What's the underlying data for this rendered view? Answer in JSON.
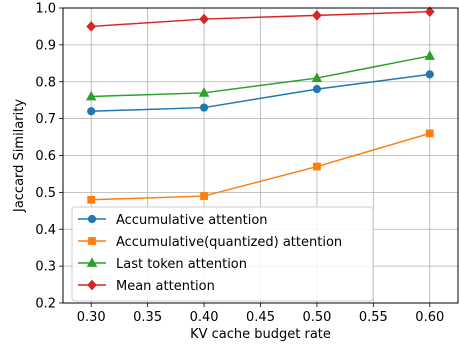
{
  "chart_data": {
    "type": "line",
    "title": "",
    "xlabel": "KV cache budget rate",
    "ylabel": "Jaccard Similarity",
    "x": [
      0.3,
      0.4,
      0.5,
      0.6
    ],
    "xlim": [
      0.275,
      0.625
    ],
    "ylim": [
      0.2,
      1.0
    ],
    "xticks": [
      "0.30",
      "0.35",
      "0.40",
      "0.45",
      "0.50",
      "0.55",
      "0.60"
    ],
    "yticks": [
      "0.2",
      "0.3",
      "0.4",
      "0.5",
      "0.6",
      "0.7",
      "0.8",
      "0.9",
      "1.0"
    ],
    "grid": true,
    "legend_position": "lower-left",
    "series": [
      {
        "name": "Accumulative attention",
        "values": [
          0.72,
          0.73,
          0.78,
          0.82
        ],
        "color": "#1f77b4",
        "marker": "circle"
      },
      {
        "name": "Accumulative(quantized) attention",
        "values": [
          0.48,
          0.49,
          0.57,
          0.66
        ],
        "color": "#ff7f0e",
        "marker": "square"
      },
      {
        "name": "Last token attention",
        "values": [
          0.76,
          0.77,
          0.81,
          0.87
        ],
        "color": "#2ca02c",
        "marker": "triangle"
      },
      {
        "name": "Mean attention",
        "values": [
          0.95,
          0.97,
          0.98,
          0.99
        ],
        "color": "#d62728",
        "marker": "diamond"
      }
    ]
  }
}
